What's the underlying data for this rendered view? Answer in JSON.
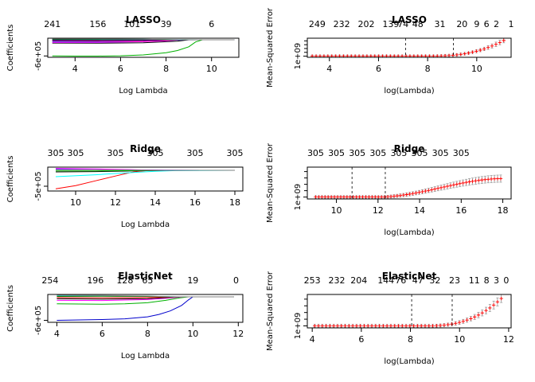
{
  "chart_data": [
    {
      "id": "lasso_path",
      "type": "line",
      "title": "LASSO",
      "xlabel": "Log Lambda",
      "ylabel": "Coefficients",
      "xlim": [
        2.8,
        11.2
      ],
      "ylim": [
        -650000,
        60000
      ],
      "x_ticks": [
        4,
        6,
        8,
        10
      ],
      "y_ticks": [
        {
          "v": -600000,
          "label": "-6e+05"
        }
      ],
      "top_axis": [
        {
          "x": 3.0,
          "label": "241"
        },
        {
          "x": 5.0,
          "label": "156"
        },
        {
          "x": 6.5,
          "label": "101"
        },
        {
          "x": 8.0,
          "label": "39"
        },
        {
          "x": 10.0,
          "label": "6"
        }
      ],
      "series": [
        {
          "color": "#00b000",
          "x": [
            3.0,
            4.0,
            5.0,
            6.0,
            7.0,
            8.0,
            8.5,
            9.0,
            9.3,
            9.6,
            10.0,
            11.0
          ],
          "values": [
            -600000,
            -605000,
            -605000,
            -595000,
            -560000,
            -480000,
            -400000,
            -260000,
            -80000,
            0,
            0,
            0
          ]
        },
        {
          "color": "#000000",
          "x": [
            3.0,
            5.0,
            7.0,
            8.5,
            9.0,
            11.0
          ],
          "values": [
            -120000,
            -125000,
            -110000,
            -50000,
            0,
            0
          ]
        },
        {
          "color": "#0000ff",
          "x": [
            3.0,
            5.0,
            7.0,
            8.0,
            8.8,
            11.0
          ],
          "values": [
            -60000,
            -70000,
            -60000,
            -30000,
            0,
            0
          ]
        },
        {
          "color": "#ff00ff",
          "x": [
            3.0,
            5.0,
            7.0,
            8.0,
            8.6,
            11.0
          ],
          "values": [
            -100000,
            -95000,
            -70000,
            -40000,
            0,
            0
          ]
        },
        {
          "color": "#ff0000",
          "x": [
            3.0,
            5.0,
            7.0,
            8.0,
            8.5,
            11.0
          ],
          "values": [
            -30000,
            -35000,
            -30000,
            -15000,
            0,
            0
          ]
        },
        {
          "color": "#00ffff",
          "x": [
            3.0,
            5.0,
            7.0,
            8.4,
            11.0
          ],
          "values": [
            30000,
            25000,
            20000,
            5000,
            0
          ]
        },
        {
          "color": "#008000",
          "x": [
            3.0,
            5.0,
            7.0,
            8.3,
            11.0
          ],
          "values": [
            15000,
            20000,
            15000,
            3000,
            0
          ]
        },
        {
          "color": "#000080",
          "x": [
            3.0,
            5.0,
            7.0,
            8.2,
            11.0
          ],
          "values": [
            -10000,
            -15000,
            -12000,
            -2000,
            0
          ]
        },
        {
          "color": "#808080",
          "x": [
            3.0,
            5.0,
            7.0,
            8.0,
            11.0
          ],
          "values": [
            40000,
            35000,
            25000,
            5000,
            0
          ]
        }
      ]
    },
    {
      "id": "lasso_cv",
      "type": "line",
      "title": "LASSO",
      "xlabel": "log(Lambda)",
      "ylabel": "Mean-Squared Error",
      "xlim": [
        3.1,
        11.4
      ],
      "ylim": [
        0,
        1
      ],
      "x_ticks": [
        4,
        6,
        8,
        10
      ],
      "y_ticks": [
        {
          "v": 0.06,
          "label": "1e+09"
        }
      ],
      "top_axis": [
        {
          "x": 3.5,
          "label": "249"
        },
        {
          "x": 4.5,
          "label": "232"
        },
        {
          "x": 5.5,
          "label": "202"
        },
        {
          "x": 6.5,
          "label": "139"
        },
        {
          "x": 7.0,
          "label": "74"
        },
        {
          "x": 7.6,
          "label": "48"
        },
        {
          "x": 8.5,
          "label": "31"
        },
        {
          "x": 9.4,
          "label": "20"
        },
        {
          "x": 10.0,
          "label": "9"
        },
        {
          "x": 10.4,
          "label": "6"
        },
        {
          "x": 10.8,
          "label": "2"
        },
        {
          "x": 11.4,
          "label": "1"
        }
      ],
      "vlines": [
        7.1,
        9.05
      ],
      "cv": {
        "xmin": 3.3,
        "xmax": 11.1,
        "n": 50,
        "base": 0.06,
        "rise_start": 8.0,
        "rise_span": 3.1,
        "peak": 0.82,
        "power": 2.6,
        "errbar": 0.12
      }
    },
    {
      "id": "ridge_path",
      "type": "line",
      "title": "Ridge",
      "xlabel": "Log Lambda",
      "ylabel": "Coefficients",
      "xlim": [
        8.6,
        18.4
      ],
      "ylim": [
        -650000,
        100000
      ],
      "x_ticks": [
        10,
        12,
        14,
        16,
        18
      ],
      "y_ticks": [
        {
          "v": -500000,
          "label": "-5e+05"
        }
      ],
      "top_axis": [
        {
          "x": 9.0,
          "label": "305"
        },
        {
          "x": 10.0,
          "label": "305"
        },
        {
          "x": 12.0,
          "label": "305"
        },
        {
          "x": 14.0,
          "label": "305"
        },
        {
          "x": 16.0,
          "label": "305"
        },
        {
          "x": 18.0,
          "label": "305"
        }
      ],
      "series": [
        {
          "color": "#ff0000",
          "x": [
            9.0,
            10.0,
            11.0,
            12.0,
            12.6,
            13.0,
            13.6,
            14.5,
            18.0
          ],
          "values": [
            -580000,
            -480000,
            -330000,
            -180000,
            -90000,
            -40000,
            -10000,
            0,
            0
          ]
        },
        {
          "color": "#00ffff",
          "x": [
            9.0,
            11.0,
            12.5,
            14.0,
            15.0,
            18.0
          ],
          "values": [
            -200000,
            -140000,
            -80000,
            -30000,
            -10000,
            0
          ]
        },
        {
          "color": "#0000ff",
          "x": [
            9.0,
            11.0,
            12.5,
            13.5,
            14.5,
            18.0
          ],
          "values": [
            40000,
            30000,
            20000,
            8000,
            2000,
            0
          ]
        },
        {
          "color": "#000000",
          "x": [
            9.0,
            11.0,
            12.5,
            13.5,
            14.5,
            18.0
          ],
          "values": [
            -50000,
            -40000,
            -25000,
            -10000,
            -2000,
            0
          ]
        },
        {
          "color": "#ff00ff",
          "x": [
            9.0,
            11.0,
            12.5,
            13.5,
            14.5,
            18.0
          ],
          "values": [
            60000,
            45000,
            25000,
            10000,
            2000,
            0
          ]
        },
        {
          "color": "#00b000",
          "x": [
            9.0,
            11.0,
            12.5,
            13.5,
            14.5,
            18.0
          ],
          "values": [
            -20000,
            -18000,
            -12000,
            -5000,
            -1000,
            0
          ]
        },
        {
          "color": "#808080",
          "x": [
            9.0,
            11.0,
            12.5,
            13.5,
            14.5,
            18.0
          ],
          "values": [
            20000,
            18000,
            12000,
            5000,
            1000,
            0
          ]
        }
      ]
    },
    {
      "id": "ridge_cv",
      "type": "line",
      "title": "Ridge",
      "xlabel": "log(Lambda)",
      "ylabel": "Mean-Squared Error",
      "xlim": [
        8.6,
        18.4
      ],
      "ylim": [
        0,
        1
      ],
      "x_ticks": [
        10,
        12,
        14,
        16,
        18
      ],
      "y_ticks": [
        {
          "v": 0.06,
          "label": "1e+09"
        }
      ],
      "top_axis": [
        {
          "x": 9.0,
          "label": "305"
        },
        {
          "x": 10.0,
          "label": "305"
        },
        {
          "x": 11.0,
          "label": "305"
        },
        {
          "x": 12.0,
          "label": "305"
        },
        {
          "x": 13.0,
          "label": "305"
        },
        {
          "x": 14.0,
          "label": "305"
        },
        {
          "x": 15.0,
          "label": "305"
        },
        {
          "x": 16.0,
          "label": "305"
        }
      ],
      "vlines": [
        10.75,
        12.35
      ],
      "cv": {
        "xmin": 9.0,
        "xmax": 17.9,
        "n": 60,
        "base": 0.06,
        "rise_start": 12.0,
        "rise_span": 6.0,
        "peak": 0.58,
        "power": 1.0,
        "sigmoid": true,
        "errbar": 0.12
      }
    },
    {
      "id": "elasticnet_path",
      "type": "line",
      "title": "ElasticNet",
      "xlabel": "Log Lambda",
      "ylabel": "Coefficients",
      "xlim": [
        3.6,
        12.2
      ],
      "ylim": [
        -650000,
        60000
      ],
      "x_ticks": [
        4,
        6,
        8,
        10,
        12
      ],
      "y_ticks": [
        {
          "v": -600000,
          "label": "-6e+05"
        }
      ],
      "top_axis": [
        {
          "x": 3.7,
          "label": "254"
        },
        {
          "x": 5.7,
          "label": "196"
        },
        {
          "x": 7.0,
          "label": "128"
        },
        {
          "x": 8.0,
          "label": "65"
        },
        {
          "x": 10.0,
          "label": "19"
        },
        {
          "x": 11.9,
          "label": "0"
        }
      ],
      "series": [
        {
          "color": "#0000cc",
          "x": [
            4.0,
            5.0,
            6.0,
            7.0,
            8.0,
            8.5,
            9.0,
            9.5,
            9.8,
            10.0,
            11.8
          ],
          "values": [
            -600000,
            -590000,
            -580000,
            -560000,
            -510000,
            -450000,
            -360000,
            -220000,
            -80000,
            0,
            0
          ]
        },
        {
          "color": "#00b000",
          "x": [
            4.0,
            6.0,
            7.0,
            8.0,
            8.8,
            9.4,
            9.8,
            11.8
          ],
          "values": [
            -180000,
            -190000,
            -180000,
            -150000,
            -90000,
            -30000,
            0,
            0
          ]
        },
        {
          "color": "#ff00ff",
          "x": [
            4.0,
            6.0,
            8.0,
            9.0,
            9.6,
            11.8
          ],
          "values": [
            -90000,
            -95000,
            -70000,
            -30000,
            0,
            0
          ]
        },
        {
          "color": "#000000",
          "x": [
            4.0,
            6.0,
            8.0,
            9.0,
            9.5,
            11.8
          ],
          "values": [
            -50000,
            -60000,
            -45000,
            -15000,
            0,
            0
          ]
        },
        {
          "color": "#ff0000",
          "x": [
            4.0,
            6.0,
            8.0,
            9.0,
            9.4,
            11.8
          ],
          "values": [
            -20000,
            -25000,
            -20000,
            -5000,
            0,
            0
          ]
        },
        {
          "color": "#00ffff",
          "x": [
            4.0,
            6.0,
            8.0,
            9.3,
            11.8
          ],
          "values": [
            30000,
            25000,
            15000,
            0,
            0
          ]
        },
        {
          "color": "#008000",
          "x": [
            4.0,
            6.0,
            8.0,
            9.2,
            11.8
          ],
          "values": [
            10000,
            15000,
            10000,
            0,
            0
          ]
        },
        {
          "color": "#808080",
          "x": [
            4.0,
            6.0,
            8.0,
            9.0,
            11.8
          ],
          "values": [
            40000,
            35000,
            20000,
            0,
            0
          ]
        }
      ]
    },
    {
      "id": "elasticnet_cv",
      "type": "line",
      "title": "ElasticNet",
      "xlabel": "log(Lambda)",
      "ylabel": "Mean-Squared Error",
      "xlim": [
        3.8,
        12.1
      ],
      "ylim": [
        0,
        1
      ],
      "x_ticks": [
        4,
        6,
        8,
        10,
        12
      ],
      "y_ticks": [
        {
          "v": 0.06,
          "label": "1e+09"
        }
      ],
      "top_axis": [
        {
          "x": 4.0,
          "label": "253"
        },
        {
          "x": 5.0,
          "label": "232"
        },
        {
          "x": 5.9,
          "label": "204"
        },
        {
          "x": 7.0,
          "label": "144"
        },
        {
          "x": 7.6,
          "label": "76"
        },
        {
          "x": 8.3,
          "label": "47"
        },
        {
          "x": 9.0,
          "label": "32"
        },
        {
          "x": 9.8,
          "label": "23"
        },
        {
          "x": 10.6,
          "label": "11"
        },
        {
          "x": 11.1,
          "label": "8"
        },
        {
          "x": 11.5,
          "label": "3"
        },
        {
          "x": 11.9,
          "label": "0"
        }
      ],
      "vlines": [
        8.05,
        9.7
      ],
      "cv": {
        "xmin": 4.1,
        "xmax": 11.7,
        "n": 50,
        "base": 0.06,
        "rise_start": 8.6,
        "rise_span": 3.1,
        "peak": 0.82,
        "power": 2.6,
        "errbar": 0.12
      }
    }
  ]
}
